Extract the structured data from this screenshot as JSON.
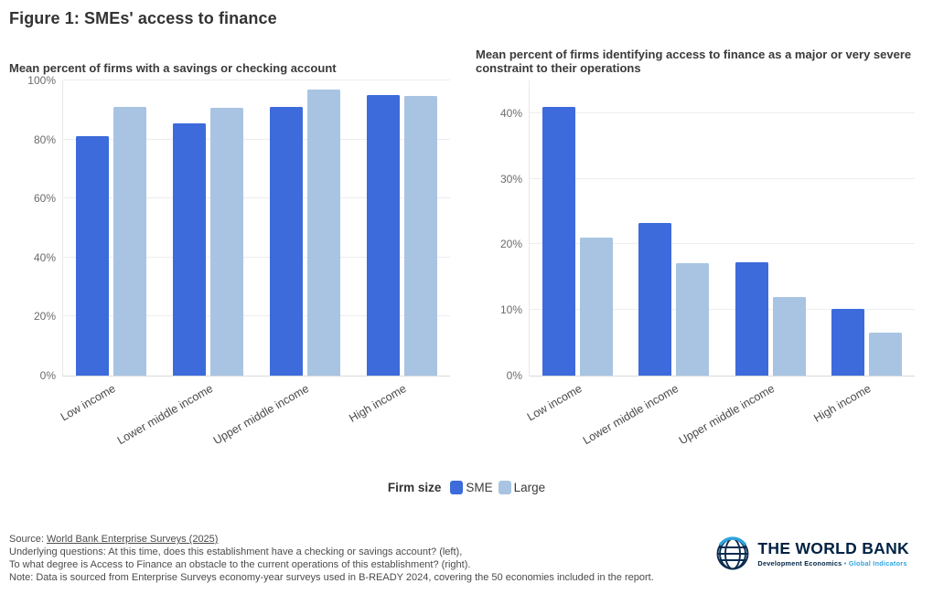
{
  "title": "Figure 1: SMEs' access to finance",
  "chart_data": [
    {
      "type": "bar",
      "subtitle": "Mean percent of firms with a savings or checking account",
      "categories": [
        "Low income",
        "Lower middle income",
        "Upper middle income",
        "High income"
      ],
      "series": [
        {
          "name": "SME",
          "color": "#3D6BDB",
          "values": [
            81,
            85.5,
            91,
            95
          ]
        },
        {
          "name": "Large",
          "color": "#A8C4E2",
          "values": [
            91,
            90.7,
            96.8,
            94.7
          ]
        }
      ],
      "ylabel": "",
      "xlabel": "",
      "ylim": [
        0,
        100
      ],
      "yticks": [
        0,
        20,
        40,
        60,
        80,
        100
      ],
      "ytick_suffix": "%",
      "grid": "horizontal",
      "legend_position": "bottom-center"
    },
    {
      "type": "bar",
      "subtitle": "Mean percent of firms identifying access to finance as a major or very severe constraint to their operations",
      "categories": [
        "Low income",
        "Lower middle income",
        "Upper middle income",
        "High income"
      ],
      "series": [
        {
          "name": "SME",
          "color": "#3D6BDB",
          "values": [
            41,
            23.2,
            17.3,
            10.2
          ]
        },
        {
          "name": "Large",
          "color": "#A8C4E2",
          "values": [
            21,
            17.2,
            12,
            6.5
          ]
        }
      ],
      "ylabel": "",
      "xlabel": "",
      "ylim": [
        0,
        45
      ],
      "yticks": [
        0,
        10,
        20,
        30,
        40
      ],
      "ytick_suffix": "%",
      "grid": "horizontal",
      "legend_position": "bottom-center"
    }
  ],
  "legend": {
    "title": "Firm size",
    "items": [
      {
        "label": "SME",
        "color": "#3D6BDB"
      },
      {
        "label": "Large",
        "color": "#A8C4E2"
      }
    ]
  },
  "footer": {
    "source_prefix": "Source: ",
    "source_link": "World Bank Enterprise Surveys (2025)",
    "lines": [
      "Underlying questions: At this time, does this establishment have a checking or savings account? (left),",
      "To what degree is Access to Finance an obstacle to the current operations of this establishment? (right).",
      "Note: Data is sourced from Enterprise Surveys economy-year surveys used in B-READY 2024, covering the 50 economies included in the report."
    ]
  },
  "logo": {
    "name": "THE WORLD BANK",
    "tagline_left": "Development Economics",
    "tagline_sep": "•",
    "tagline_right": "Global Indicators",
    "navy": "#002244",
    "light_blue": "#2fa3dd"
  }
}
